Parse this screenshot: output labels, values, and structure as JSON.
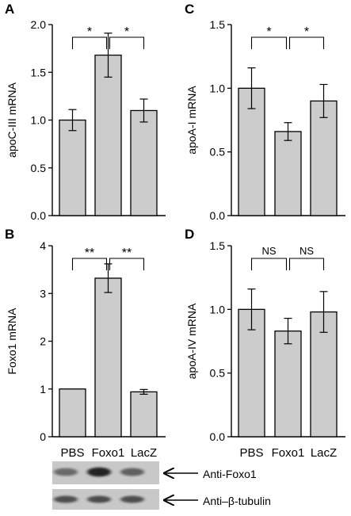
{
  "chart_data": [
    {
      "panel": "A",
      "type": "bar",
      "ylabel": "apoC-III mRNA",
      "categories": [
        "PBS",
        "Foxo1",
        "LacZ"
      ],
      "values": [
        1.0,
        1.68,
        1.1
      ],
      "errors": [
        0.11,
        0.23,
        0.12
      ],
      "ylim": [
        0,
        2.0
      ],
      "yticks": [
        "0.0",
        "0.5",
        "1.0",
        "1.5",
        "2.0"
      ],
      "comparisons": [
        {
          "from": "PBS",
          "to": "Foxo1",
          "label": "*"
        },
        {
          "from": "Foxo1",
          "to": "LacZ",
          "label": "*"
        }
      ]
    },
    {
      "panel": "B",
      "type": "bar",
      "ylabel": "Foxo1 mRNA",
      "categories": [
        "PBS",
        "Foxo1",
        "LacZ"
      ],
      "values": [
        1.0,
        3.32,
        0.94
      ],
      "errors": [
        0,
        0.3,
        0.05
      ],
      "ylim": [
        0,
        4
      ],
      "yticks": [
        "0",
        "1",
        "2",
        "3",
        "4"
      ],
      "comparisons": [
        {
          "from": "PBS",
          "to": "Foxo1",
          "label": "**"
        },
        {
          "from": "Foxo1",
          "to": "LacZ",
          "label": "**"
        }
      ]
    },
    {
      "panel": "C",
      "type": "bar",
      "ylabel": "apoA-I mRNA",
      "categories": [
        "PBS",
        "Foxo1",
        "LacZ"
      ],
      "values": [
        1.0,
        0.66,
        0.9
      ],
      "errors": [
        0.16,
        0.07,
        0.13
      ],
      "ylim": [
        0,
        1.5
      ],
      "yticks": [
        "0.0",
        "0.5",
        "1.0",
        "1.5"
      ],
      "comparisons": [
        {
          "from": "PBS",
          "to": "Foxo1",
          "label": "*"
        },
        {
          "from": "Foxo1",
          "to": "LacZ",
          "label": "*"
        }
      ]
    },
    {
      "panel": "D",
      "type": "bar",
      "ylabel": "apoA-IV mRNA",
      "categories": [
        "PBS",
        "Foxo1",
        "LacZ"
      ],
      "values": [
        1.0,
        0.83,
        0.98
      ],
      "errors": [
        0.16,
        0.1,
        0.16
      ],
      "ylim": [
        0,
        1.5
      ],
      "yticks": [
        "0.0",
        "0.5",
        "1.0",
        "1.5"
      ],
      "comparisons": [
        {
          "from": "PBS",
          "to": "Foxo1",
          "label": "NS"
        },
        {
          "from": "Foxo1",
          "to": "LacZ",
          "label": "NS"
        }
      ]
    }
  ],
  "x_categories_shown": [
    "PBS",
    "Foxo1",
    "LacZ"
  ],
  "blot": {
    "lanes": [
      "PBS",
      "Foxo1",
      "LacZ"
    ],
    "rows": [
      {
        "label": "Anti-Foxo1",
        "intensities": [
          0.55,
          0.95,
          0.6
        ]
      },
      {
        "label": "Anti–β-tubulin",
        "intensities": [
          0.7,
          0.72,
          0.7
        ]
      }
    ]
  },
  "colors": {
    "bar": "#cccccc",
    "axis": "#000000",
    "blot_bg": "#c8c8c8",
    "band": "#1e1e1e"
  }
}
